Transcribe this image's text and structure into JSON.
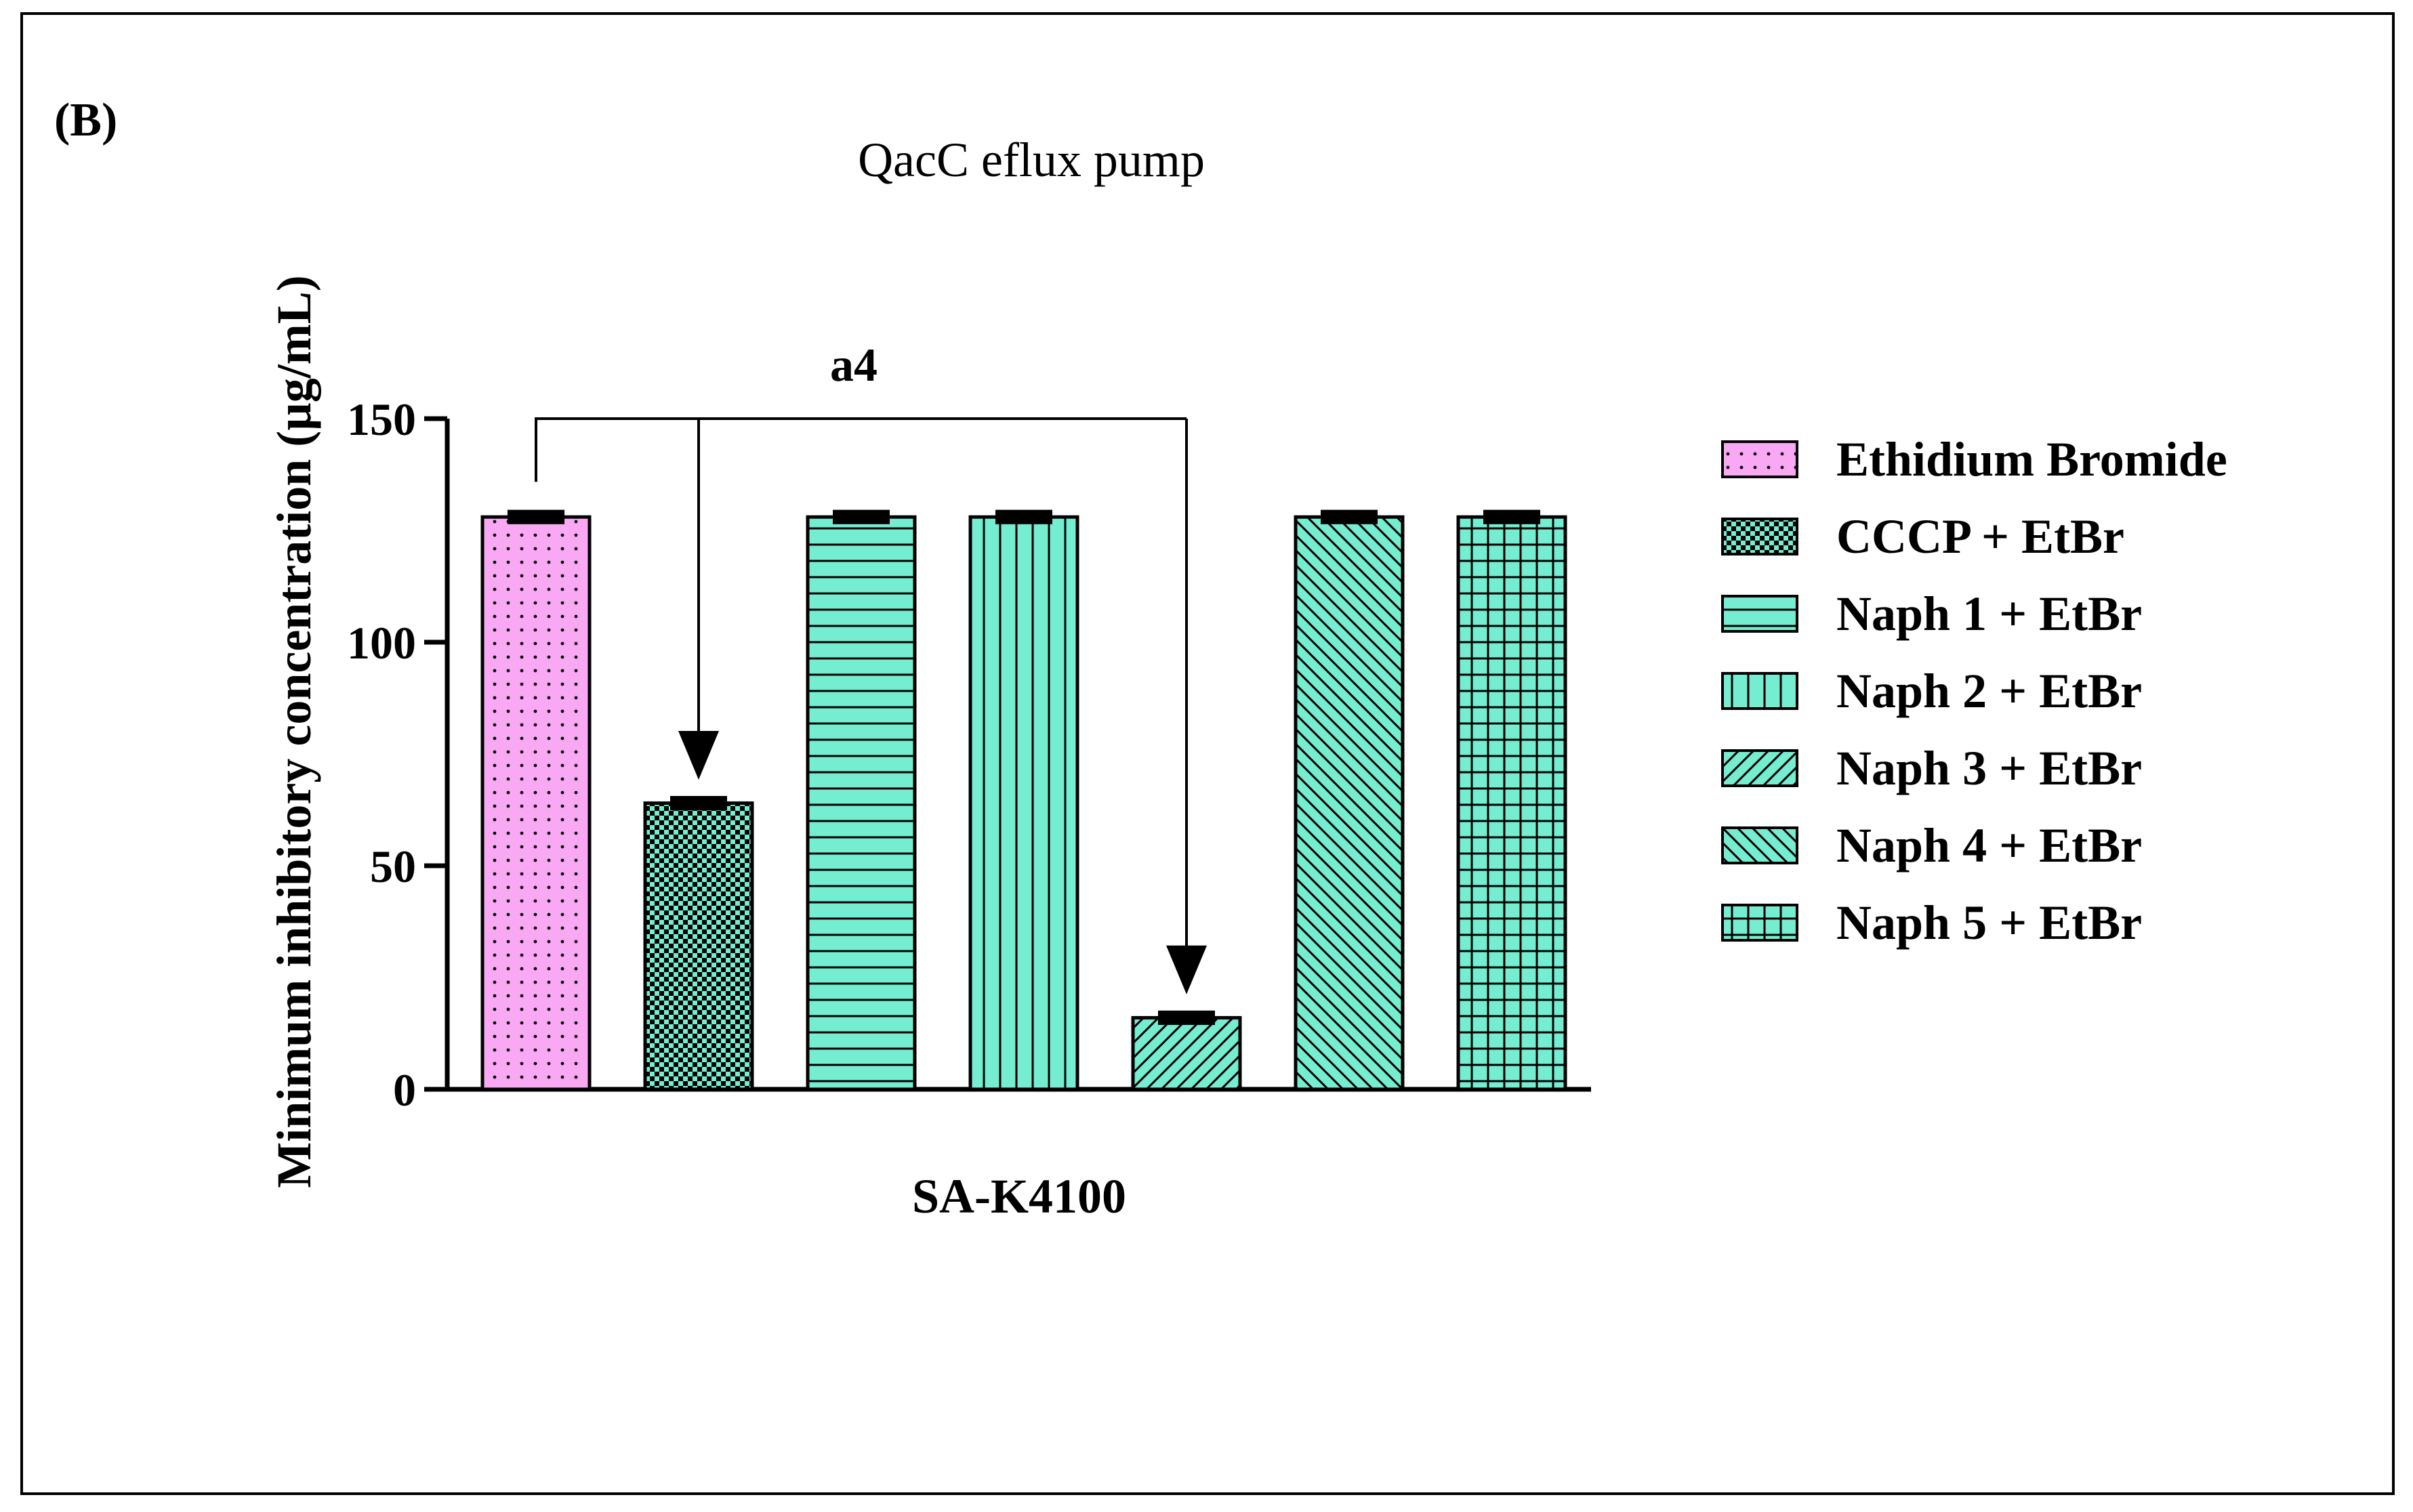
{
  "panel_label": "(B)",
  "chart_data": {
    "type": "bar",
    "title": "QacC eflux pump",
    "xlabel": "SA-K4100",
    "ylabel": "Minimum inhibitory concentration (µg/mL)",
    "ylim": [
      0,
      150
    ],
    "yticks": [
      0,
      50,
      100,
      150
    ],
    "grid": false,
    "legend_position": "right",
    "categories": [
      "Ethidium Bromide",
      "CCCP + EtBr",
      "Naph 1 + EtBr",
      "Naph 2 + EtBr",
      "Naph 3 + EtBr",
      "Naph 4 + EtBr",
      "Naph 5 + EtBr"
    ],
    "values": [
      128,
      64,
      128,
      128,
      16,
      128,
      128
    ],
    "error": [
      1,
      1,
      1,
      1,
      1,
      1,
      1
    ],
    "patterns": [
      "dots",
      "checker",
      "horizontal",
      "vertical",
      "diag-up",
      "diag-down",
      "grid"
    ],
    "colors": {
      "ethidium": "#f9a9f4",
      "treatment": "#75edd0",
      "outline": "#000000"
    },
    "annotation": {
      "label": "a4",
      "from": "Ethidium Bromide",
      "to": [
        "CCCP + EtBr",
        "Naph 3 + EtBr"
      ]
    }
  }
}
